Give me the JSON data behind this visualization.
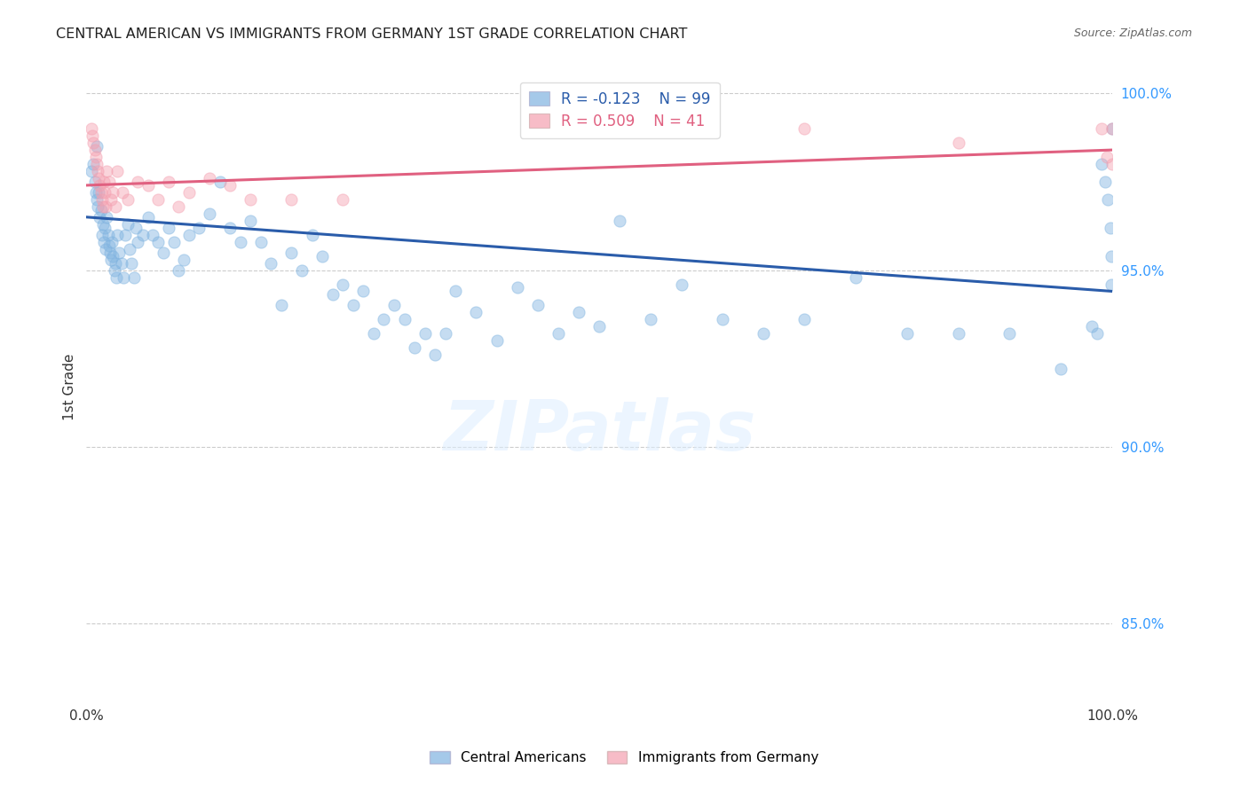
{
  "title": "CENTRAL AMERICAN VS IMMIGRANTS FROM GERMANY 1ST GRADE CORRELATION CHART",
  "source": "Source: ZipAtlas.com",
  "ylabel": "1st Grade",
  "xlim": [
    0.0,
    1.0
  ],
  "ylim": [
    0.827,
    1.007
  ],
  "yticks": [
    0.85,
    0.9,
    0.95,
    1.0
  ],
  "ytick_labels": [
    "85.0%",
    "90.0%",
    "95.0%",
    "100.0%"
  ],
  "background_color": "#ffffff",
  "blue_color": "#7fb3e0",
  "pink_color": "#f4a0b0",
  "blue_line_color": "#2a5caa",
  "pink_line_color": "#e06080",
  "R_blue": -0.123,
  "N_blue": 99,
  "R_pink": 0.509,
  "N_pink": 41,
  "legend_label_blue": "Central Americans",
  "legend_label_pink": "Immigrants from Germany",
  "watermark": "ZIPatlas",
  "blue_line_x0": 0.0,
  "blue_line_x1": 1.0,
  "blue_line_y0": 0.965,
  "blue_line_y1": 0.944,
  "pink_line_x0": 0.0,
  "pink_line_x1": 1.0,
  "pink_line_y0": 0.974,
  "pink_line_y1": 0.984,
  "blue_x": [
    0.005,
    0.007,
    0.008,
    0.009,
    0.01,
    0.01,
    0.011,
    0.012,
    0.013,
    0.014,
    0.015,
    0.016,
    0.017,
    0.018,
    0.019,
    0.02,
    0.021,
    0.022,
    0.023,
    0.024,
    0.025,
    0.026,
    0.027,
    0.028,
    0.029,
    0.03,
    0.032,
    0.034,
    0.036,
    0.038,
    0.04,
    0.042,
    0.044,
    0.046,
    0.048,
    0.05,
    0.055,
    0.06,
    0.065,
    0.07,
    0.075,
    0.08,
    0.085,
    0.09,
    0.095,
    0.1,
    0.11,
    0.12,
    0.13,
    0.14,
    0.15,
    0.16,
    0.17,
    0.18,
    0.19,
    0.2,
    0.21,
    0.22,
    0.23,
    0.24,
    0.25,
    0.26,
    0.27,
    0.28,
    0.29,
    0.3,
    0.31,
    0.32,
    0.33,
    0.34,
    0.35,
    0.36,
    0.38,
    0.4,
    0.42,
    0.44,
    0.46,
    0.48,
    0.5,
    0.52,
    0.55,
    0.58,
    0.62,
    0.66,
    0.7,
    0.75,
    0.8,
    0.85,
    0.9,
    0.95,
    0.98,
    0.985,
    0.99,
    0.993,
    0.996,
    0.998,
    0.999,
    0.999,
    1.0
  ],
  "blue_y": [
    0.978,
    0.98,
    0.975,
    0.972,
    0.985,
    0.97,
    0.968,
    0.972,
    0.965,
    0.967,
    0.96,
    0.963,
    0.958,
    0.962,
    0.956,
    0.965,
    0.96,
    0.957,
    0.955,
    0.953,
    0.958,
    0.954,
    0.95,
    0.952,
    0.948,
    0.96,
    0.955,
    0.952,
    0.948,
    0.96,
    0.963,
    0.956,
    0.952,
    0.948,
    0.962,
    0.958,
    0.96,
    0.965,
    0.96,
    0.958,
    0.955,
    0.962,
    0.958,
    0.95,
    0.953,
    0.96,
    0.962,
    0.966,
    0.975,
    0.962,
    0.958,
    0.964,
    0.958,
    0.952,
    0.94,
    0.955,
    0.95,
    0.96,
    0.954,
    0.943,
    0.946,
    0.94,
    0.944,
    0.932,
    0.936,
    0.94,
    0.936,
    0.928,
    0.932,
    0.926,
    0.932,
    0.944,
    0.938,
    0.93,
    0.945,
    0.94,
    0.932,
    0.938,
    0.934,
    0.964,
    0.936,
    0.946,
    0.936,
    0.932,
    0.936,
    0.948,
    0.932,
    0.932,
    0.932,
    0.922,
    0.934,
    0.932,
    0.98,
    0.975,
    0.97,
    0.962,
    0.954,
    0.946,
    0.99
  ],
  "pink_x": [
    0.005,
    0.006,
    0.007,
    0.008,
    0.009,
    0.01,
    0.011,
    0.012,
    0.013,
    0.014,
    0.015,
    0.016,
    0.017,
    0.018,
    0.019,
    0.02,
    0.022,
    0.024,
    0.026,
    0.028,
    0.03,
    0.035,
    0.04,
    0.05,
    0.06,
    0.07,
    0.08,
    0.09,
    0.1,
    0.12,
    0.14,
    0.16,
    0.2,
    0.25,
    0.55,
    0.7,
    0.85,
    0.99,
    0.995,
    1.0,
    1.0
  ],
  "pink_y": [
    0.99,
    0.988,
    0.986,
    0.984,
    0.982,
    0.98,
    0.978,
    0.976,
    0.974,
    0.972,
    0.97,
    0.968,
    0.975,
    0.972,
    0.968,
    0.978,
    0.975,
    0.97,
    0.972,
    0.968,
    0.978,
    0.972,
    0.97,
    0.975,
    0.974,
    0.97,
    0.975,
    0.968,
    0.972,
    0.976,
    0.974,
    0.97,
    0.97,
    0.97,
    0.99,
    0.99,
    0.986,
    0.99,
    0.982,
    0.99,
    0.98
  ]
}
